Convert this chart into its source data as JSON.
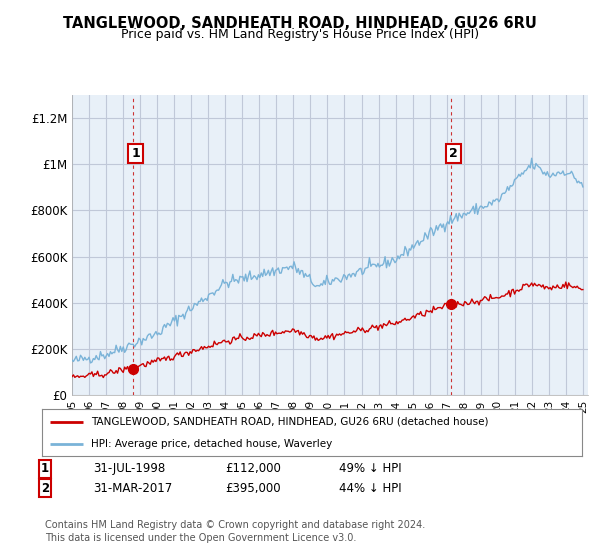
{
  "title_line1": "TANGLEWOOD, SANDHEATH ROAD, HINDHEAD, GU26 6RU",
  "title_line2": "Price paid vs. HM Land Registry's House Price Index (HPI)",
  "ylim": [
    0,
    1300000
  ],
  "yticks": [
    0,
    200000,
    400000,
    600000,
    800000,
    1000000,
    1200000
  ],
  "ytick_labels": [
    "£0",
    "£200K",
    "£400K",
    "£600K",
    "£800K",
    "£1M",
    "£1.2M"
  ],
  "hpi_color": "#7ab3d8",
  "price_color": "#cc0000",
  "chart_bg": "#e8f0f8",
  "marker1_year": 1998.58,
  "marker1_price": 112000,
  "marker2_year": 2017.25,
  "marker2_price": 395000,
  "legend_line1": "TANGLEWOOD, SANDHEATH ROAD, HINDHEAD, GU26 6RU (detached house)",
  "legend_line2": "HPI: Average price, detached house, Waverley",
  "footer": "Contains HM Land Registry data © Crown copyright and database right 2024.\nThis data is licensed under the Open Government Licence v3.0.",
  "background_color": "#ffffff",
  "grid_color": "#c0c8d8"
}
